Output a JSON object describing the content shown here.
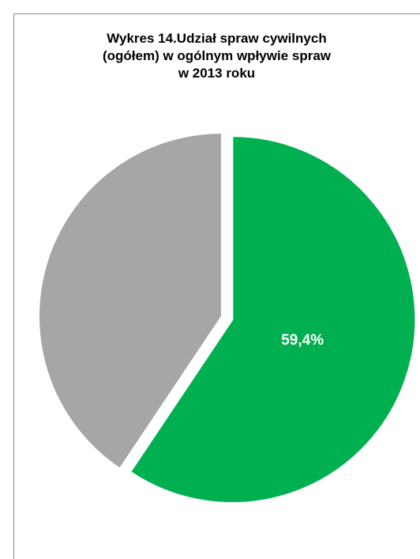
{
  "chart_data": {
    "type": "pie",
    "title_lines": [
      "Wykres 14.Udział spraw cywilnych",
      "(ogółem) w ogólnym wpływie spraw",
      "w 2013 roku"
    ],
    "slices": [
      {
        "value": 59.4,
        "label": "59,4%",
        "color": "#00b050",
        "exploded": true
      },
      {
        "value": 40.6,
        "label": "",
        "color": "#a6a6a6",
        "exploded": false
      }
    ],
    "start_angle_deg": 0,
    "direction": "clockwise",
    "legend": "none"
  }
}
